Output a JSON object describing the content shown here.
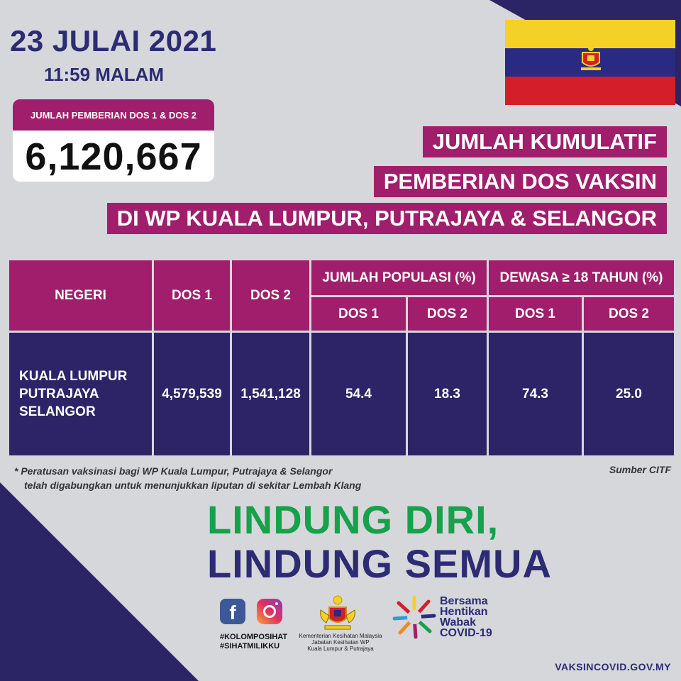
{
  "header": {
    "date": "23 JULAI 2021",
    "time": "11:59 MALAM"
  },
  "total": {
    "label": "JUMLAH PEMBERIAN DOS 1 & DOS 2",
    "value": "6,120,667"
  },
  "title_lines": [
    "JUMLAH KUMULATIF",
    "PEMBERIAN DOS VAKSIN",
    "DI WP KUALA LUMPUR, PUTRAJAYA & SELANGOR"
  ],
  "table": {
    "headers": {
      "negeri": "NEGERI",
      "dos1": "DOS 1",
      "dos2": "DOS 2",
      "populasi": "JUMLAH POPULASI (%)",
      "dewasa": "DEWASA ≥ 18 TAHUN (%)",
      "sub_dos1": "DOS 1",
      "sub_dos2": "DOS 2"
    },
    "row": {
      "negeri": [
        "KUALA LUMPUR",
        "PUTRAJAYA",
        "SELANGOR"
      ],
      "dos1": "4,579,539",
      "dos2": "1,541,128",
      "pop_dos1": "54.4",
      "pop_dos2": "18.3",
      "adult_dos1": "74.3",
      "adult_dos2": "25.0"
    }
  },
  "footnote": {
    "line1": "* Peratusan vaksinasi bagi WP Kuala Lumpur, Putrajaya & Selangor",
    "line2": "telah digabungkan untuk menunjukkan liputan di sekitar Lembah Klang",
    "source": "Sumber CITF"
  },
  "slogan": {
    "line1": "LINDUNG DIRI,",
    "line2": "LINDUNG SEMUA"
  },
  "footer": {
    "hashtags": [
      "#KOLOMPOSIHAT",
      "#SIHATMILIKKU"
    ],
    "ministry": [
      "Kementerian Kesihatan Malaysia",
      "Jabatan Kesihatan WP",
      "Kuala Lumpur & Putrajaya"
    ],
    "campaign": [
      "Bersama",
      "Hentikan",
      "Wabak",
      "COVID-19"
    ],
    "url": "VAKSINCOVID.GOV.MY"
  },
  "icons": {
    "facebook": "facebook-icon",
    "instagram": "instagram-icon",
    "emblem": "coat-of-arms-icon",
    "campaign": "covid-campaign-logo"
  },
  "colors": {
    "magenta": "#a01e6c",
    "navy": "#2c2466",
    "green": "#16a14b",
    "background": "#d6d7db"
  }
}
